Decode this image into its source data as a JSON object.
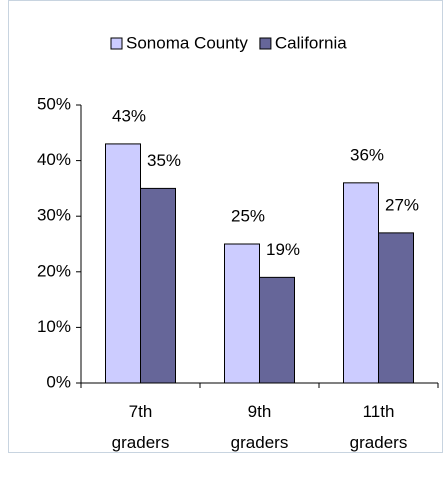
{
  "chart_data": {
    "type": "bar",
    "categories": [
      "7th graders",
      "9th graders",
      "11th graders"
    ],
    "series": [
      {
        "name": "Sonoma County",
        "color": "#ccccff",
        "values": [
          43,
          25,
          36
        ],
        "value_labels": [
          "43%",
          "25%",
          "36%"
        ]
      },
      {
        "name": "California",
        "color": "#666699",
        "values": [
          35,
          19,
          27
        ],
        "value_labels": [
          "35%",
          "19%",
          "27%"
        ]
      }
    ],
    "ylim": [
      0,
      50
    ],
    "yticks": [
      {
        "value": 0,
        "label": "0%"
      },
      {
        "value": 10,
        "label": "10%"
      },
      {
        "value": 20,
        "label": "20%"
      },
      {
        "value": 30,
        "label": "30%"
      },
      {
        "value": 40,
        "label": "40%"
      },
      {
        "value": 50,
        "label": "50%"
      }
    ],
    "grid": false,
    "legend": "top"
  }
}
